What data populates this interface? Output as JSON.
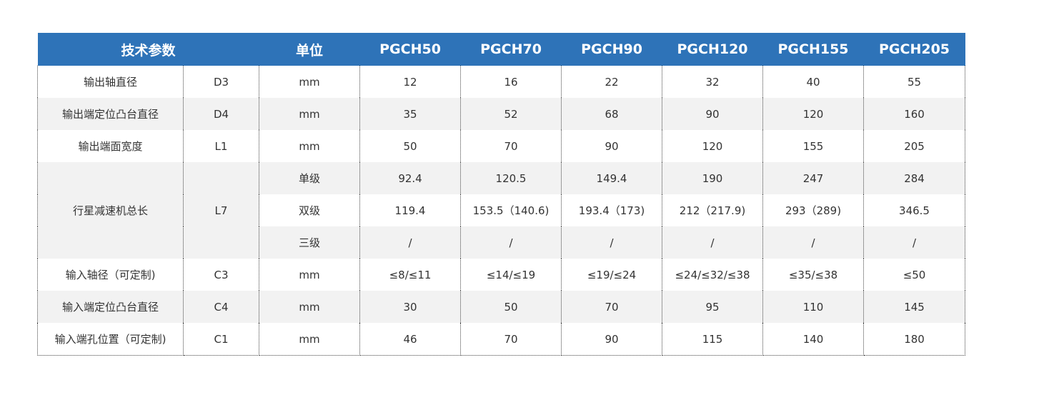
{
  "table": {
    "headers": {
      "param": "技术参数",
      "unit": "单位",
      "models": [
        "PGCH50",
        "PGCH70",
        "PGCH90",
        "PGCH120",
        "PGCH155",
        "PGCH205"
      ]
    },
    "rows": [
      {
        "name": "输出轴直径",
        "code": "D3",
        "unit": "mm",
        "values": [
          "12",
          "16",
          "22",
          "32",
          "40",
          "55"
        ]
      },
      {
        "name": "输出端定位凸台直径",
        "code": "D4",
        "unit": "mm",
        "values": [
          "35",
          "52",
          "68",
          "90",
          "120",
          "160"
        ]
      },
      {
        "name": "输出端面宽度",
        "code": "L1",
        "unit": "mm",
        "values": [
          "50",
          "70",
          "90",
          "120",
          "155",
          "205"
        ]
      }
    ],
    "length_group": {
      "name": "行星减速机总长",
      "code": "L7",
      "stages": [
        {
          "unit": "单级",
          "values": [
            "92.4",
            "120.5",
            "149.4",
            "190",
            "247",
            "284"
          ]
        },
        {
          "unit": "双级",
          "values": [
            "119.4",
            "153.5（140.6)",
            "193.4（173)",
            "212（217.9)",
            "293（289)",
            "346.5"
          ]
        },
        {
          "unit": "三级",
          "values": [
            "/",
            "/",
            "/",
            "/",
            "/",
            "/"
          ]
        }
      ]
    },
    "rows_after": [
      {
        "name": "输入轴径（可定制)",
        "code": "C3",
        "unit": "mm",
        "values": [
          "≤8/≤11",
          "≤14/≤19",
          "≤19/≤24",
          "≤24/≤32/≤38",
          "≤35/≤38",
          "≤50"
        ]
      },
      {
        "name": "输入端定位凸台直径",
        "code": "C4",
        "unit": "mm",
        "values": [
          "30",
          "50",
          "70",
          "95",
          "110",
          "145"
        ]
      },
      {
        "name": "输入端孔位置（可定制)",
        "code": "C1",
        "unit": "mm",
        "values": [
          "46",
          "70",
          "90",
          "115",
          "140",
          "180"
        ]
      }
    ]
  },
  "colors": {
    "header_bg": "#2e73b8",
    "header_text": "#ffffff",
    "stripe_bg": "#f2f2f2",
    "border": "#444444"
  }
}
